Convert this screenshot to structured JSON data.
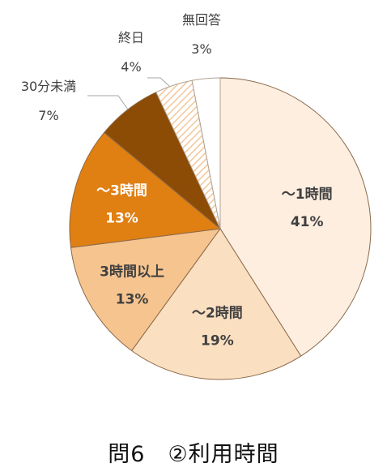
{
  "caption": "問6　②利用時間",
  "chart_data": {
    "type": "pie",
    "start_angle_deg": 0,
    "direction": "clockwise",
    "slices": [
      {
        "name": "～1時間",
        "value": 41,
        "value_label": "41%",
        "color": "#fdeee0",
        "text_color": "#404040",
        "label_position": "inside"
      },
      {
        "name": "～2時間",
        "value": 19,
        "value_label": "19%",
        "color": "#fbdfc1",
        "text_color": "#404040",
        "label_position": "inside"
      },
      {
        "name": "3時間以上",
        "value": 13,
        "value_label": "13%",
        "color": "#f6c48f",
        "text_color": "#404040",
        "label_position": "inside"
      },
      {
        "name": "～3時間",
        "value": 13,
        "value_label": "13%",
        "color": "#e07f12",
        "text_color": "#ffffff",
        "label_position": "inside"
      },
      {
        "name": "30分未満",
        "value": 7,
        "value_label": "7%",
        "color": "#8c4c05",
        "text_color": "#404040",
        "label_position": "outside"
      },
      {
        "name": "終日",
        "value": 4,
        "value_label": "4%",
        "color": "hatched",
        "text_color": "#404040",
        "label_position": "outside"
      },
      {
        "name": "無回答",
        "value": 3,
        "value_label": "3%",
        "color": "#ffffff",
        "text_color": "#404040",
        "label_position": "outside"
      }
    ]
  }
}
